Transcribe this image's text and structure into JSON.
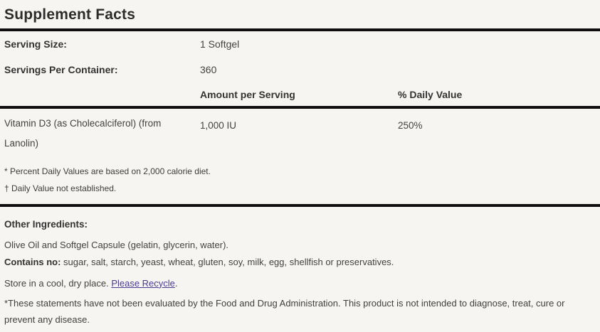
{
  "label": {
    "title": "Supplement Facts",
    "serving_size_label": "Serving Size:",
    "serving_size_value": "1 Softgel",
    "servings_per_container_label": "Servings Per Container:",
    "servings_per_container_value": "360",
    "amount_header": "Amount per Serving",
    "daily_value_header": "% Daily Value",
    "rows": [
      {
        "name": "Vitamin D3 (as Cholecalciferol) (from Lanolin)",
        "amount": "1,000 IU",
        "daily_value": "250%"
      }
    ],
    "footnote_percent_dv": "* Percent Daily Values are based on 2,000 calorie diet.",
    "footnote_dagger": "† Daily Value not established.",
    "other_ingredients_label": "Other Ingredients:",
    "other_ingredients_value": "Olive Oil and Softgel Capsule (gelatin, glycerin, water).",
    "contains_no_label": "Contains no:",
    "contains_no_value": " sugar, salt, starch, yeast, wheat, gluten, soy, milk, egg, shellfish or preservatives.",
    "storage_text": "Store in a cool, dry place. ",
    "recycle_link_label": "Please Recycle",
    "recycle_suffix": ".",
    "fda_disclaimer": "*These statements have not been evaluated by the Food and Drug Administration. This product is not intended to diagnose, treat, cure or prevent any disease."
  },
  "colors": {
    "background": "#f6f5f2",
    "body_text": "#444240",
    "heading_text": "#2d2c2b",
    "rule": "#0f0f0f",
    "link": "#4a3c93"
  }
}
